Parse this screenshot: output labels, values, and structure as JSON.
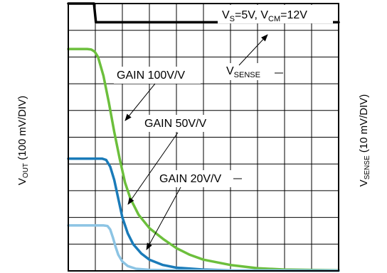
{
  "chart_data": {
    "type": "line",
    "title": "",
    "left_axis_label": {
      "main": "V",
      "sub": "OUT",
      "rest": " (100 mV/DIV)"
    },
    "right_axis_label": {
      "main": "V",
      "sub": "SENSE",
      "rest": " (10 mV/DIV)"
    },
    "grid": true,
    "divisions": {
      "x": 10,
      "y": 10
    },
    "x_range_div": [
      0,
      10
    ],
    "y_range_div": [
      0,
      10
    ],
    "condition_label": {
      "p1": "V",
      "p1_sub": "S",
      "p2": "=5V, V",
      "p2_sub": "CM",
      "p3": "=12V"
    },
    "vsense_label": {
      "main": "V",
      "sub": "SENSE"
    },
    "series": [
      {
        "key": "vsense",
        "color": "#000000",
        "points": [
          [
            0,
            10
          ],
          [
            0.95,
            10
          ],
          [
            1.02,
            9.3
          ],
          [
            10,
            9.3
          ]
        ]
      },
      {
        "key": "gain100",
        "name": "GAIN 100V/V",
        "color": "#6cbf3c",
        "points": [
          [
            0,
            8.3
          ],
          [
            0.7,
            8.3
          ],
          [
            0.85,
            8.28
          ],
          [
            0.98,
            8.2
          ],
          [
            1.1,
            8.0
          ],
          [
            1.3,
            7.3
          ],
          [
            1.5,
            6.3
          ],
          [
            1.7,
            5.2
          ],
          [
            1.9,
            4.2
          ],
          [
            2.1,
            3.3
          ],
          [
            2.3,
            2.7
          ],
          [
            2.6,
            2.1
          ],
          [
            3.0,
            1.6
          ],
          [
            3.5,
            1.2
          ],
          [
            4.0,
            0.85
          ],
          [
            4.5,
            0.6
          ],
          [
            5.0,
            0.42
          ],
          [
            6.0,
            0.22
          ],
          [
            7.0,
            0.1
          ],
          [
            8.0,
            0.05
          ],
          [
            10,
            0.02
          ]
        ]
      },
      {
        "key": "gain50",
        "name": "GAIN 50V/V",
        "color": "#1a7bb9",
        "points": [
          [
            0,
            4.2
          ],
          [
            1.25,
            4.2
          ],
          [
            1.4,
            4.15
          ],
          [
            1.55,
            3.9
          ],
          [
            1.7,
            3.4
          ],
          [
            1.85,
            2.7
          ],
          [
            2.0,
            2.0
          ],
          [
            2.2,
            1.4
          ],
          [
            2.4,
            1.0
          ],
          [
            2.7,
            0.65
          ],
          [
            3.0,
            0.42
          ],
          [
            3.5,
            0.22
          ],
          [
            4.0,
            0.12
          ],
          [
            5.0,
            0.05
          ],
          [
            6.0,
            0.02
          ],
          [
            10,
            0.01
          ]
        ]
      },
      {
        "key": "gain20",
        "name": "GAIN 20V/V",
        "color": "#8cc4e4",
        "points": [
          [
            0,
            1.7
          ],
          [
            1.3,
            1.7
          ],
          [
            1.45,
            1.68
          ],
          [
            1.55,
            1.55
          ],
          [
            1.65,
            1.25
          ],
          [
            1.75,
            0.9
          ],
          [
            1.85,
            0.6
          ],
          [
            2.0,
            0.35
          ],
          [
            2.2,
            0.18
          ],
          [
            2.5,
            0.08
          ],
          [
            3.0,
            0.04
          ],
          [
            4.0,
            0.02
          ],
          [
            10,
            0.01
          ]
        ]
      }
    ],
    "annotations": [
      {
        "key": "gain100",
        "text": "GAIN 100V/V"
      },
      {
        "key": "gain50",
        "text": "GAIN 50V/V"
      },
      {
        "key": "gain20",
        "text": "GAIN 20V/V"
      }
    ]
  }
}
